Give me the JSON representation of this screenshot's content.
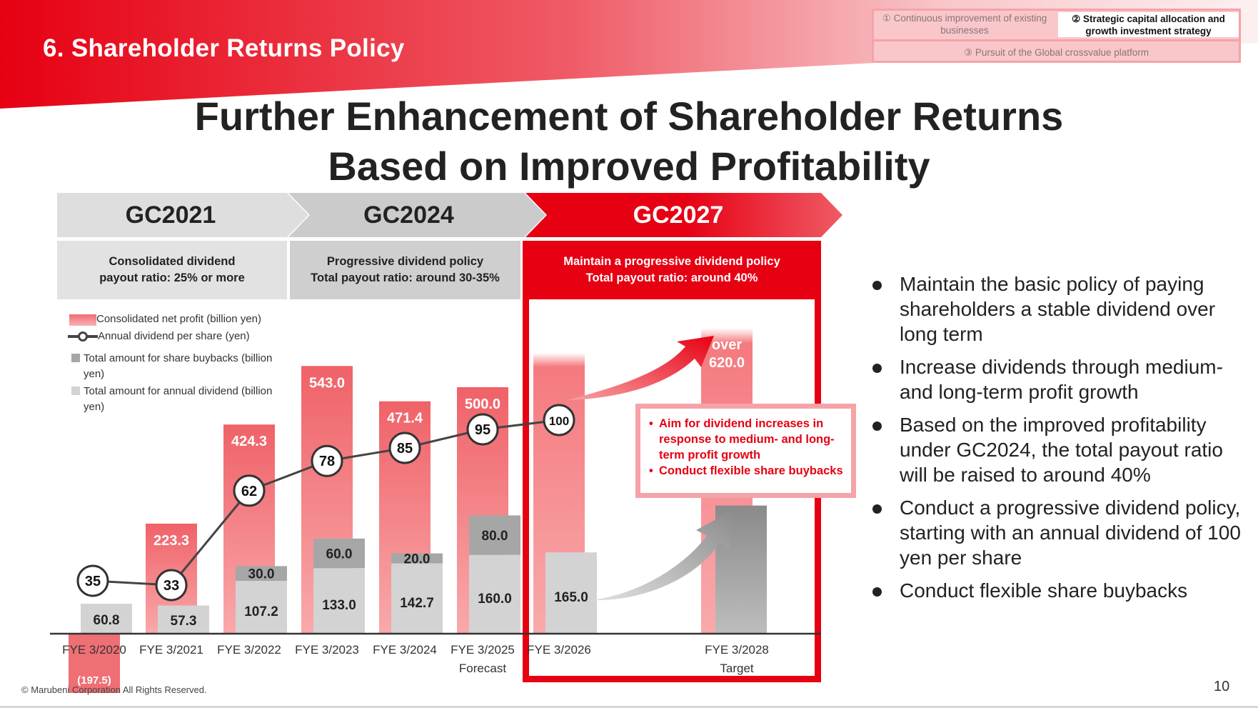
{
  "header": {
    "section_title": "6.   Shareholder Returns Policy",
    "brand_color": "#e60012"
  },
  "pillars": {
    "item1": "① Continuous improvement of existing businesses",
    "item2": "② Strategic capital allocation and growth investment strategy",
    "item3": "③ Pursuit of the Global crossvalue platform",
    "active": "item2"
  },
  "main_title": {
    "line1": "Further Enhancement of Shareholder Returns",
    "line2": "Based on Improved Profitability"
  },
  "plans": [
    {
      "name": "GC2021",
      "policy_line1": "Consolidated dividend",
      "policy_line2": "payout ratio: 25% or more"
    },
    {
      "name": "GC2024",
      "policy_line1": "Progressive dividend policy",
      "policy_line2": "Total payout ratio: around 30-35%"
    },
    {
      "name": "GC2027",
      "policy_line1": "Maintain a progressive dividend policy",
      "policy_line2": "Total payout ratio: around 40%"
    }
  ],
  "callout": {
    "items": [
      "Aim for dividend increases in response to medium- and long-term profit growth",
      "Conduct flexible share buybacks"
    ]
  },
  "bullets": [
    "Maintain the basic policy of paying shareholders a stable dividend over long term",
    "Increase dividends through medium- and long-term profit growth",
    "Based on the improved profitability under GC2024, the total payout ratio will be raised to around 40%",
    "Conduct a progressive dividend policy, starting with an annual dividend of 100 yen per share",
    "Conduct flexible share buybacks"
  ],
  "footer": {
    "copyright": "© Marubeni Corporation All Rights Reserved.",
    "page_number": "10"
  },
  "chart_data": {
    "type": "bar",
    "title": "",
    "xlabel": "",
    "ylabel": "",
    "categories": [
      "FYE 3/2020",
      "FYE 3/2021",
      "FYE 3/2022",
      "FYE 3/2023",
      "FYE 3/2024",
      "FYE 3/2025",
      "FYE 3/2026",
      "FYE 3/2028"
    ],
    "category_sublabels": [
      "",
      "",
      "",
      "",
      "",
      "Forecast",
      "",
      "Target"
    ],
    "legend": [
      "Consolidated net profit (billion yen)",
      "Annual dividend per share (yen)",
      "Total amount for share buybacks (billion yen)",
      "Total amount for annual dividend (billion yen)"
    ],
    "legend_placement": "top-left",
    "series": [
      {
        "name": "Consolidated net profit (billion yen)",
        "type": "bar",
        "color": "#f07a7e",
        "values": [
          -197.5,
          223.3,
          424.3,
          543.0,
          471.4,
          500.0,
          null,
          620.0
        ],
        "labels": [
          "(197.5)",
          "223.3",
          "424.3",
          "543.0",
          "471.4",
          "500.0",
          "",
          "over 620.0"
        ]
      },
      {
        "name": "Annual dividend per share (yen)",
        "type": "line",
        "color": "#444444",
        "values": [
          35,
          33,
          62,
          78,
          85,
          95,
          100,
          null
        ],
        "labels": [
          "35",
          "33",
          "62",
          "78",
          "85",
          "95",
          "100",
          ""
        ]
      },
      {
        "name": "Total amount for annual dividend (billion yen)",
        "type": "stacked-bar",
        "color": "#d3d3d3",
        "values": [
          60.8,
          57.3,
          107.2,
          133.0,
          142.7,
          160.0,
          165.0,
          null
        ],
        "labels": [
          "60.8",
          "57.3",
          "107.2",
          "133.0",
          "142.7",
          "160.0",
          "165.0",
          ""
        ]
      },
      {
        "name": "Total amount for share buybacks (billion yen)",
        "type": "stacked-bar",
        "color": "#a6a6a6",
        "values": [
          0,
          0,
          30.0,
          60.0,
          20.0,
          80.0,
          null,
          null
        ],
        "labels": [
          "",
          "",
          "30.0",
          "60.0",
          "20.0",
          "80.0",
          "",
          ""
        ]
      }
    ],
    "gc2027_profit_label_prefix": "over",
    "gc2027_profit_label_value": "620.0"
  }
}
